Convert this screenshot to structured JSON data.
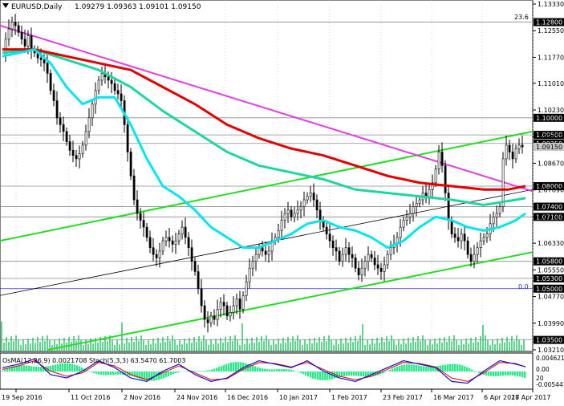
{
  "header": {
    "symbol_timeframe": "EURUSD,Daily",
    "ohlc": "1.09279 1.09363 1.09101 1.09150"
  },
  "fib_label": "23.6",
  "zero_label": "0.0",
  "indicator_label": "OsMA(12,26,9) 0.0021708   Stoch(5,3,3) 63.5470 61.7003",
  "colors": {
    "bull_candle": "#000000",
    "bear_candle": "#000000",
    "ema_short": "#00e5ee",
    "ema_mid": "#1ed6a0",
    "ema_long": "#e00000",
    "trendline_down": "#e040e0",
    "channel": "#22dd22",
    "channel_mid": "#000000",
    "level_line": "#8a8a8a",
    "osma_bars": "#2de88a",
    "stoch_main": "#1010cc",
    "stoch_signal": "#e00000"
  },
  "chart_data": {
    "type": "candlestick",
    "title": "EURUSD,Daily",
    "y_ticks": [
      "1.13330",
      "1.12550",
      "1.11770",
      "1.11010",
      "1.10230",
      "1.09450",
      "1.08670",
      "1.07890",
      "1.07110",
      "1.06330",
      "1.05550",
      "1.04770",
      "1.03990",
      "1.03210"
    ],
    "y_range": [
      1.0321,
      1.1333
    ],
    "level_labels": [
      "1.12800",
      "1.10000",
      "1.09500",
      "1.09250",
      "1.09150",
      "1.08000",
      "1.07400",
      "1.07100",
      "1.05800",
      "1.05300",
      "1.05000",
      "1.03500"
    ],
    "x_ticks": [
      "19 Sep 2016",
      "11 Oct 2016",
      "2 Nov 2016",
      "24 Nov 2016",
      "16 Dec 2016",
      "10 Jan 2017",
      "1 Feb 2017",
      "23 Feb 2017",
      "16 Mar 2017",
      "6 Apr 2017",
      "28 Apr 2017"
    ],
    "indicator_ticks": [
      "0.004621",
      "0.00",
      "20",
      "-0.005447"
    ],
    "price_path": [
      [
        0,
        1.118
      ],
      [
        4,
        1.123
      ],
      [
        8,
        1.126
      ],
      [
        12,
        1.128
      ],
      [
        16,
        1.127
      ],
      [
        20,
        1.125
      ],
      [
        24,
        1.123
      ],
      [
        28,
        1.121
      ],
      [
        32,
        1.124
      ],
      [
        36,
        1.12
      ],
      [
        40,
        1.119
      ],
      [
        44,
        1.1175
      ],
      [
        48,
        1.117
      ],
      [
        52,
        1.116
      ],
      [
        56,
        1.113
      ],
      [
        60,
        1.108
      ],
      [
        64,
        1.105
      ],
      [
        68,
        1.1
      ],
      [
        72,
        1.098
      ],
      [
        76,
        1.096
      ],
      [
        80,
        1.093
      ],
      [
        84,
        1.0905
      ],
      [
        88,
        1.089
      ],
      [
        92,
        1.088
      ],
      [
        96,
        1.0895
      ],
      [
        100,
        1.092
      ],
      [
        104,
        1.096
      ],
      [
        108,
        1.1
      ],
      [
        112,
        1.104
      ],
      [
        116,
        1.108
      ],
      [
        120,
        1.111
      ],
      [
        124,
        1.113
      ],
      [
        128,
        1.112
      ],
      [
        132,
        1.111
      ],
      [
        136,
        1.11
      ],
      [
        140,
        1.108
      ],
      [
        144,
        1.107
      ],
      [
        148,
        1.105
      ],
      [
        152,
        1.098
      ],
      [
        156,
        1.09
      ],
      [
        160,
        1.083
      ],
      [
        164,
        1.076
      ],
      [
        168,
        1.072
      ],
      [
        172,
        1.07
      ],
      [
        176,
        1.068
      ],
      [
        180,
        1.065
      ],
      [
        184,
        1.062
      ],
      [
        188,
        1.06
      ],
      [
        192,
        1.059
      ],
      [
        196,
        1.061
      ],
      [
        200,
        1.064
      ],
      [
        204,
        1.065
      ],
      [
        208,
        1.064
      ],
      [
        212,
        1.063
      ],
      [
        216,
        1.064
      ],
      [
        220,
        1.066
      ],
      [
        224,
        1.068
      ],
      [
        228,
        1.065
      ],
      [
        232,
        1.062
      ],
      [
        236,
        1.058
      ],
      [
        240,
        1.055
      ],
      [
        244,
        1.05
      ],
      [
        248,
        1.045
      ],
      [
        252,
        1.041
      ],
      [
        256,
        1.04
      ],
      [
        260,
        1.042
      ],
      [
        264,
        1.041
      ],
      [
        268,
        1.044
      ],
      [
        272,
        1.046
      ],
      [
        276,
        1.045
      ],
      [
        280,
        1.042
      ],
      [
        284,
        1.043
      ],
      [
        288,
        1.045
      ],
      [
        292,
        1.047
      ],
      [
        296,
        1.044
      ],
      [
        300,
        1.048
      ],
      [
        304,
        1.052
      ],
      [
        308,
        1.056
      ],
      [
        312,
        1.058
      ],
      [
        316,
        1.06
      ],
      [
        320,
        1.062
      ],
      [
        324,
        1.061
      ],
      [
        328,
        1.06
      ],
      [
        332,
        1.061
      ],
      [
        336,
        1.064
      ],
      [
        340,
        1.065
      ],
      [
        344,
        1.067
      ],
      [
        348,
        1.07
      ],
      [
        352,
        1.072
      ],
      [
        356,
        1.073
      ],
      [
        360,
        1.071
      ],
      [
        364,
        1.072
      ],
      [
        368,
        1.073
      ],
      [
        372,
        1.074
      ],
      [
        376,
        1.076
      ],
      [
        380,
        1.077
      ],
      [
        384,
        1.078
      ],
      [
        388,
        1.076
      ],
      [
        392,
        1.073
      ],
      [
        396,
        1.07
      ],
      [
        400,
        1.068
      ],
      [
        404,
        1.066
      ],
      [
        408,
        1.064
      ],
      [
        412,
        1.062
      ],
      [
        416,
        1.061
      ],
      [
        420,
        1.058
      ],
      [
        424,
        1.06
      ],
      [
        428,
        1.062
      ],
      [
        432,
        1.06
      ],
      [
        436,
        1.059
      ],
      [
        440,
        1.056
      ],
      [
        444,
        1.054
      ],
      [
        448,
        1.056
      ],
      [
        452,
        1.058
      ],
      [
        456,
        1.06
      ],
      [
        460,
        1.059
      ],
      [
        464,
        1.057
      ],
      [
        468,
        1.056
      ],
      [
        472,
        1.055
      ],
      [
        476,
        1.057
      ],
      [
        480,
        1.06
      ],
      [
        484,
        1.062
      ],
      [
        488,
        1.063
      ],
      [
        492,
        1.065
      ],
      [
        496,
        1.068
      ],
      [
        500,
        1.07
      ],
      [
        504,
        1.071
      ],
      [
        508,
        1.072
      ],
      [
        512,
        1.074
      ],
      [
        516,
        1.075
      ],
      [
        520,
        1.076
      ],
      [
        524,
        1.078
      ],
      [
        528,
        1.077
      ],
      [
        532,
        1.079
      ],
      [
        536,
        1.081
      ],
      [
        540,
        1.085
      ],
      [
        544,
        1.09
      ],
      [
        548,
        1.086
      ],
      [
        552,
        1.078
      ],
      [
        556,
        1.07
      ],
      [
        560,
        1.066
      ],
      [
        564,
        1.065
      ],
      [
        568,
        1.064
      ],
      [
        572,
        1.066
      ],
      [
        576,
        1.064
      ],
      [
        580,
        1.06
      ],
      [
        584,
        1.058
      ],
      [
        588,
        1.06
      ],
      [
        592,
        1.062
      ],
      [
        596,
        1.064
      ],
      [
        600,
        1.065
      ],
      [
        604,
        1.066
      ],
      [
        608,
        1.069
      ],
      [
        612,
        1.071
      ],
      [
        616,
        1.072
      ],
      [
        620,
        1.074
      ],
      [
        624,
        1.088
      ],
      [
        628,
        1.092
      ],
      [
        632,
        1.09
      ],
      [
        636,
        1.088
      ],
      [
        640,
        1.091
      ],
      [
        644,
        1.092
      ],
      [
        648,
        1.0915
      ]
    ],
    "ema_short": [
      [
        0,
        1.118
      ],
      [
        40,
        1.12
      ],
      [
        60,
        1.116
      ],
      [
        80,
        1.109
      ],
      [
        100,
        1.104
      ],
      [
        120,
        1.106
      ],
      [
        140,
        1.106
      ],
      [
        160,
        1.098
      ],
      [
        180,
        1.088
      ],
      [
        200,
        1.08
      ],
      [
        220,
        1.077
      ],
      [
        240,
        1.073
      ],
      [
        260,
        1.068
      ],
      [
        280,
        1.065
      ],
      [
        300,
        1.062
      ],
      [
        320,
        1.062
      ],
      [
        340,
        1.064
      ],
      [
        360,
        1.066
      ],
      [
        380,
        1.069
      ],
      [
        400,
        1.07
      ],
      [
        420,
        1.068
      ],
      [
        440,
        1.067
      ],
      [
        460,
        1.065
      ],
      [
        480,
        1.062
      ],
      [
        500,
        1.064
      ],
      [
        520,
        1.068
      ],
      [
        540,
        1.071
      ],
      [
        560,
        1.07
      ],
      [
        580,
        1.068
      ],
      [
        600,
        1.067
      ],
      [
        620,
        1.068
      ],
      [
        640,
        1.07
      ],
      [
        652,
        1.072
      ]
    ],
    "ema_mid": [
      [
        0,
        1.119
      ],
      [
        40,
        1.12
      ],
      [
        80,
        1.117
      ],
      [
        120,
        1.114
      ],
      [
        160,
        1.109
      ],
      [
        200,
        1.102
      ],
      [
        240,
        1.096
      ],
      [
        280,
        1.09
      ],
      [
        320,
        1.086
      ],
      [
        360,
        1.084
      ],
      [
        400,
        1.082
      ],
      [
        440,
        1.079
      ],
      [
        480,
        1.078
      ],
      [
        520,
        1.077
      ],
      [
        560,
        1.076
      ],
      [
        600,
        1.0745
      ],
      [
        640,
        1.076
      ],
      [
        652,
        1.0765
      ]
    ],
    "ema_long": [
      [
        0,
        1.12
      ],
      [
        40,
        1.12
      ],
      [
        80,
        1.118
      ],
      [
        120,
        1.116
      ],
      [
        160,
        1.114
      ],
      [
        200,
        1.109
      ],
      [
        240,
        1.104
      ],
      [
        280,
        1.098
      ],
      [
        320,
        1.094
      ],
      [
        360,
        1.091
      ],
      [
        400,
        1.089
      ],
      [
        440,
        1.086
      ],
      [
        480,
        1.083
      ],
      [
        520,
        1.081
      ],
      [
        560,
        1.08
      ],
      [
        600,
        1.079
      ],
      [
        630,
        1.079
      ],
      [
        652,
        1.08
      ]
    ],
    "stoch_main": [
      [
        0,
        60
      ],
      [
        20,
        70
      ],
      [
        40,
        85
      ],
      [
        60,
        40
      ],
      [
        80,
        30
      ],
      [
        100,
        50
      ],
      [
        120,
        80
      ],
      [
        140,
        60
      ],
      [
        160,
        30
      ],
      [
        180,
        20
      ],
      [
        200,
        50
      ],
      [
        220,
        70
      ],
      [
        240,
        40
      ],
      [
        260,
        20
      ],
      [
        280,
        30
      ],
      [
        300,
        60
      ],
      [
        320,
        80
      ],
      [
        340,
        70
      ],
      [
        360,
        60
      ],
      [
        380,
        80
      ],
      [
        400,
        50
      ],
      [
        420,
        30
      ],
      [
        440,
        20
      ],
      [
        460,
        40
      ],
      [
        480,
        60
      ],
      [
        500,
        80
      ],
      [
        520,
        70
      ],
      [
        540,
        60
      ],
      [
        560,
        20
      ],
      [
        580,
        15
      ],
      [
        600,
        50
      ],
      [
        620,
        80
      ],
      [
        640,
        70
      ],
      [
        652,
        63
      ]
    ],
    "stoch_signal": [
      [
        0,
        55
      ],
      [
        20,
        65
      ],
      [
        40,
        80
      ],
      [
        60,
        50
      ],
      [
        80,
        35
      ],
      [
        100,
        45
      ],
      [
        120,
        75
      ],
      [
        140,
        65
      ],
      [
        160,
        40
      ],
      [
        180,
        25
      ],
      [
        200,
        45
      ],
      [
        220,
        65
      ],
      [
        240,
        45
      ],
      [
        260,
        25
      ],
      [
        280,
        28
      ],
      [
        300,
        55
      ],
      [
        320,
        75
      ],
      [
        340,
        72
      ],
      [
        360,
        62
      ],
      [
        380,
        75
      ],
      [
        400,
        55
      ],
      [
        420,
        35
      ],
      [
        440,
        25
      ],
      [
        460,
        35
      ],
      [
        480,
        55
      ],
      [
        500,
        75
      ],
      [
        520,
        72
      ],
      [
        540,
        62
      ],
      [
        560,
        30
      ],
      [
        580,
        20
      ],
      [
        600,
        45
      ],
      [
        620,
        75
      ],
      [
        640,
        72
      ],
      [
        652,
        62
      ]
    ]
  }
}
